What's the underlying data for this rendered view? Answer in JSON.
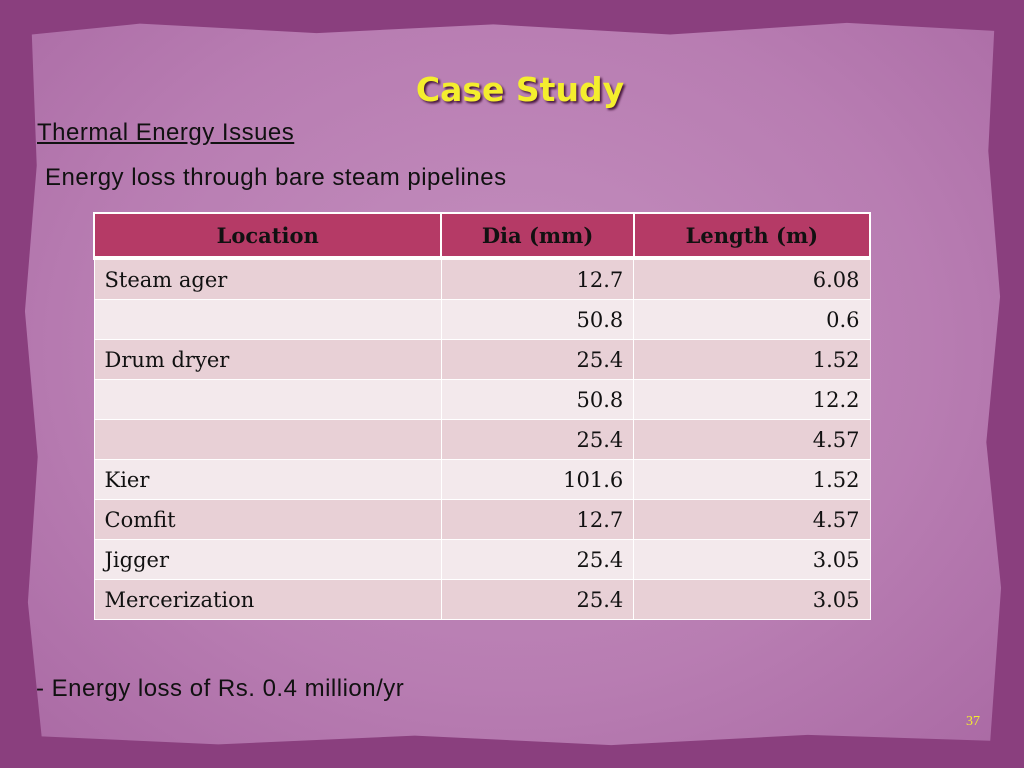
{
  "slide": {
    "title": "Case Study",
    "subheading": "Thermal Energy Issues",
    "subtitle": "Energy loss through bare steam pipelines",
    "footer_note": "- Energy loss of Rs. 0.4 million/yr",
    "page_number": "37"
  },
  "table": {
    "headers": [
      "Location",
      "Dia (mm)",
      "Length (m)"
    ],
    "rows": [
      [
        "Steam ager",
        "12.7",
        "6.08"
      ],
      [
        "",
        "50.8",
        "0.6"
      ],
      [
        "Drum dryer",
        "25.4",
        "1.52"
      ],
      [
        "",
        "50.8",
        "12.2"
      ],
      [
        "",
        "25.4",
        "4.57"
      ],
      [
        "Kier",
        "101.6",
        "1.52"
      ],
      [
        "Comfit",
        "12.7",
        "4.57"
      ],
      [
        "Jigger",
        "25.4",
        "3.05"
      ],
      [
        "Mercerization",
        "25.4",
        "3.05"
      ]
    ]
  },
  "colors": {
    "background": "#8a3f7e",
    "paper": "#b87db2",
    "title": "#f4ee2e",
    "header_fill": "#b53a66",
    "row_odd": "#e8d0d6",
    "row_even": "#f3e9ec"
  }
}
